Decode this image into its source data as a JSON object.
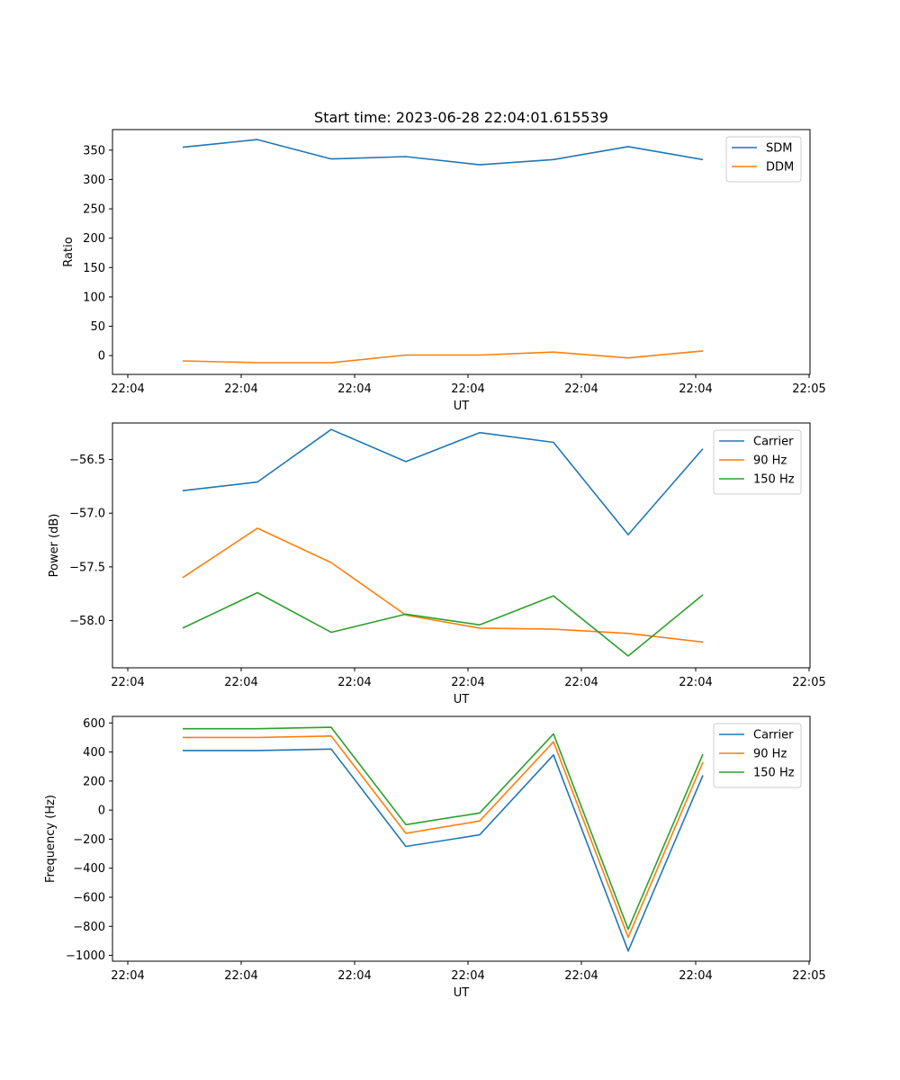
{
  "title": "Start time: 2023-06-28 22:04:01.615539",
  "chart_data": [
    {
      "type": "line",
      "xlabel": "UT",
      "ylabel": "Ratio",
      "x_ticks": [
        "22:04",
        "22:04",
        "22:04",
        "22:04",
        "22:04",
        "22:04",
        "22:04",
        "22:05"
      ],
      "y_ticks": [
        0,
        50,
        100,
        150,
        200,
        250,
        300,
        350
      ],
      "ylim": [
        -32,
        385
      ],
      "legend_position": "top-right",
      "grid": false,
      "series": [
        {
          "name": "SDM",
          "color": "#1f77b4",
          "values": [
            355,
            368,
            335,
            339,
            325,
            334,
            356,
            334
          ]
        },
        {
          "name": "DDM",
          "color": "#ff7f0e",
          "values": [
            -9,
            -12,
            -12,
            1,
            1,
            6,
            -4,
            8
          ]
        }
      ]
    },
    {
      "type": "line",
      "xlabel": "UT",
      "ylabel": "Power (dB)",
      "x_ticks": [
        "22:04",
        "22:04",
        "22:04",
        "22:04",
        "22:04",
        "22:04",
        "22:04",
        "22:05"
      ],
      "y_ticks": [
        -58.0,
        -57.5,
        -57.0,
        -56.5
      ],
      "y_tick_labels": [
        "−58.0",
        "−57.5",
        "−57.0",
        "−56.5"
      ],
      "ylim": [
        -58.44,
        -56.16
      ],
      "legend_position": "top-right",
      "grid": false,
      "series": [
        {
          "name": "Carrier",
          "color": "#1f77b4",
          "values": [
            -56.79,
            -56.71,
            -56.22,
            -56.52,
            -56.25,
            -56.34,
            -57.2,
            -56.4
          ]
        },
        {
          "name": "90 Hz",
          "color": "#ff7f0e",
          "values": [
            -57.6,
            -57.14,
            -57.46,
            -57.95,
            -58.07,
            -58.08,
            -58.12,
            -58.2
          ]
        },
        {
          "name": "150 Hz",
          "color": "#2ca02c",
          "values": [
            -58.07,
            -57.74,
            -58.11,
            -57.94,
            -58.04,
            -57.77,
            -58.33,
            -57.76
          ]
        }
      ]
    },
    {
      "type": "line",
      "xlabel": "UT",
      "ylabel": "Frequency (Hz)",
      "x_ticks": [
        "22:04",
        "22:04",
        "22:04",
        "22:04",
        "22:04",
        "22:04",
        "22:04",
        "22:05"
      ],
      "y_ticks": [
        -1000,
        -800,
        -600,
        -400,
        -200,
        0,
        200,
        400,
        600
      ],
      "y_tick_labels": [
        "−1000",
        "−800",
        "−600",
        "−400",
        "−200",
        "0",
        "200",
        "400",
        "600"
      ],
      "ylim": [
        -1040,
        645
      ],
      "legend_position": "top-right",
      "grid": false,
      "series": [
        {
          "name": "Carrier",
          "color": "#1f77b4",
          "values": [
            410,
            410,
            420,
            -250,
            -170,
            380,
            -970,
            240
          ]
        },
        {
          "name": "90 Hz",
          "color": "#ff7f0e",
          "values": [
            500,
            500,
            510,
            -160,
            -75,
            470,
            -875,
            330
          ]
        },
        {
          "name": "150 Hz",
          "color": "#2ca02c",
          "values": [
            560,
            560,
            570,
            -100,
            -20,
            525,
            -820,
            385
          ]
        }
      ]
    }
  ]
}
